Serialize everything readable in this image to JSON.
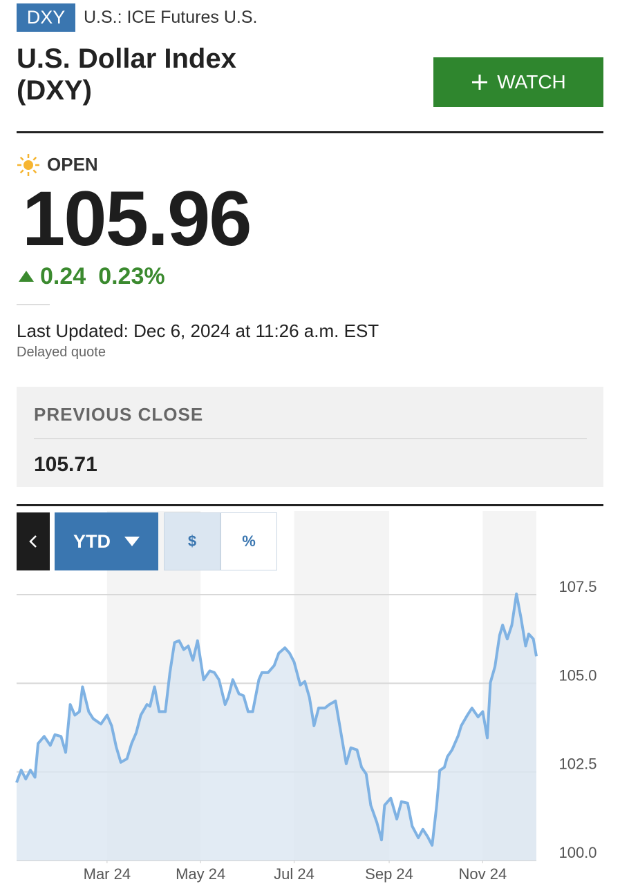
{
  "header": {
    "badge": "DXY",
    "exchange": "U.S.: ICE Futures U.S.",
    "title": "U.S. Dollar Index (DXY)",
    "watch_button": "WATCH"
  },
  "quote": {
    "status": "OPEN",
    "price": "105.96",
    "change": "0.24",
    "change_percent": "0.23%",
    "last_updated": "Last Updated: Dec 6, 2024 at 11:26 a.m. EST",
    "delay_note": "Delayed quote"
  },
  "previous_close": {
    "label": "PREVIOUS CLOSE",
    "value": "105.71"
  },
  "chart_controls": {
    "range": "YTD",
    "price_mode": "$",
    "percent_mode": "%"
  },
  "chart_data": {
    "type": "line",
    "color": "#7fb2e3",
    "fill_color": "#dbe6f1",
    "grid": true,
    "x": [
      2,
      5,
      8,
      11,
      14,
      16,
      20,
      24,
      27,
      31,
      34,
      37,
      40,
      43,
      45,
      49,
      52,
      57,
      61,
      64,
      67,
      70,
      74,
      77,
      80,
      83,
      87,
      89,
      92,
      95,
      99,
      102,
      105,
      108,
      111,
      114,
      117,
      120,
      124,
      128,
      131,
      134,
      138,
      140,
      143,
      147,
      150,
      153,
      156,
      160,
      162,
      166,
      170,
      173,
      177,
      180,
      183,
      187,
      190,
      193,
      196,
      199,
      203,
      206,
      210,
      212,
      217,
      220,
      224,
      227,
      230,
      233,
      237,
      240,
      242,
      246,
      250,
      253,
      257,
      260,
      264,
      267,
      270,
      273,
      276,
      278,
      281,
      283,
      286,
      290,
      292,
      296,
      299,
      303,
      306,
      309,
      311,
      314,
      317,
      319,
      322,
      325,
      328,
      331,
      334,
      336,
      339,
      341
    ],
    "values": [
      102.2,
      102.55,
      102.3,
      102.55,
      102.35,
      103.3,
      103.5,
      103.25,
      103.55,
      103.5,
      103.05,
      104.4,
      104.1,
      104.2,
      104.9,
      104.2,
      104.0,
      103.85,
      104.1,
      103.8,
      103.2,
      102.77,
      102.87,
      103.3,
      103.6,
      104.1,
      104.4,
      104.35,
      104.9,
      104.2,
      104.2,
      105.3,
      106.15,
      106.2,
      105.95,
      106.05,
      105.65,
      106.2,
      105.1,
      105.35,
      105.3,
      105.1,
      104.4,
      104.6,
      105.1,
      104.7,
      104.65,
      104.2,
      104.2,
      105.1,
      105.3,
      105.3,
      105.5,
      105.85,
      106.0,
      105.85,
      105.6,
      104.95,
      105.05,
      104.6,
      103.8,
      104.3,
      104.3,
      104.4,
      104.5,
      104.0,
      102.73,
      103.18,
      103.12,
      102.63,
      102.44,
      101.56,
      101.07,
      100.58,
      101.56,
      101.76,
      101.17,
      101.66,
      101.62,
      100.97,
      100.64,
      100.88,
      100.68,
      100.43,
      101.56,
      102.54,
      102.63,
      102.93,
      103.12,
      103.52,
      103.8,
      104.1,
      104.3,
      104.05,
      104.2,
      103.46,
      105.02,
      105.47,
      106.35,
      106.64,
      106.25,
      106.64,
      107.52,
      106.84,
      106.05,
      106.39,
      106.25,
      105.76
    ],
    "xlim": [
      2,
      341
    ],
    "xticks": [
      {
        "value": 61,
        "label": "Mar 24"
      },
      {
        "value": 122,
        "label": "May 24"
      },
      {
        "value": 183,
        "label": "Jul 24"
      },
      {
        "value": 245,
        "label": "Sep 24"
      },
      {
        "value": 306,
        "label": "Nov 24"
      }
    ],
    "ylim": [
      100,
      107.5
    ],
    "yticks": [
      {
        "value": 100,
        "label": "100.0"
      },
      102.5,
      {
        "value": 105,
        "label": "105.0"
      },
      107.5
    ]
  }
}
